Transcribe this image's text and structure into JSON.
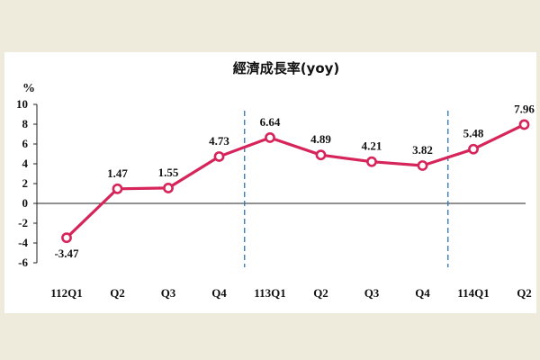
{
  "chart_data": {
    "type": "line",
    "title": "經濟成長率(yoy)",
    "ylabel": "%",
    "xlabel": "",
    "categories": [
      "112Q1",
      "Q2",
      "Q3",
      "Q4",
      "113Q1",
      "Q2",
      "Q3",
      "Q4",
      "114Q1",
      "Q2"
    ],
    "series": [
      {
        "values": [
          -3.47,
          1.47,
          1.55,
          4.73,
          6.64,
          4.89,
          4.21,
          3.82,
          5.48,
          7.96
        ]
      }
    ],
    "data_labels": [
      "-3.47",
      "1.47",
      "1.55",
      "4.73",
      "6.64",
      "4.89",
      "4.21",
      "3.82",
      "5.48",
      "7.96"
    ],
    "yticks": [
      "10",
      "8",
      "6",
      "4",
      "2",
      "0",
      "-2",
      "-4",
      "-6"
    ],
    "ylim": [
      -6,
      10
    ],
    "grid": false,
    "legend": "none",
    "year_dividers_after": [
      "Q4",
      "Q4"
    ],
    "colors": {
      "line": "#d6255b",
      "marker_fill": "#ffffff",
      "divider": "#2e75b6",
      "axis": "#222222"
    }
  }
}
